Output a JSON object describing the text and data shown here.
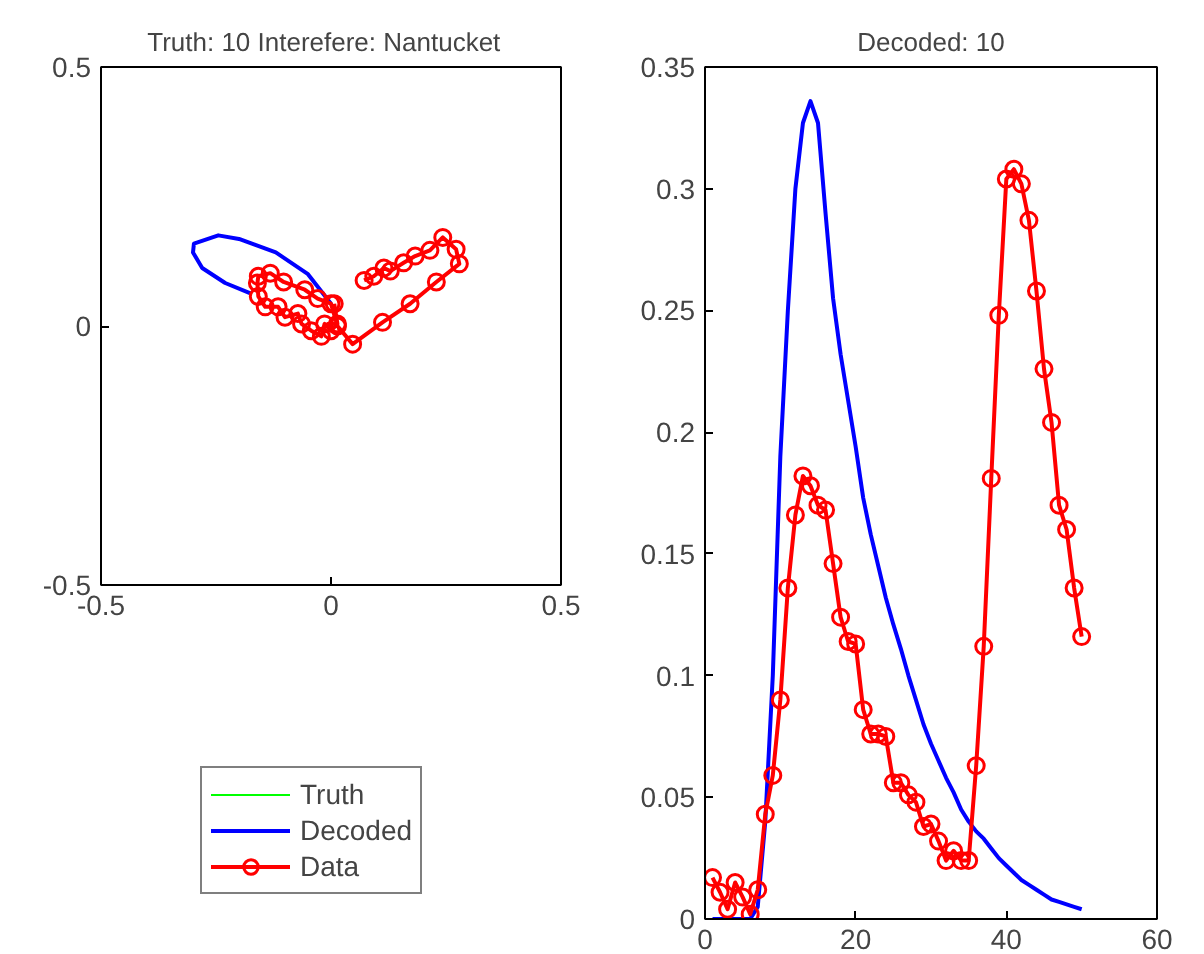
{
  "chart_data": [
    {
      "type": "line",
      "title": "Truth: 10   Interefere: Nantucket",
      "xlim": [
        -0.5,
        0.5
      ],
      "ylim": [
        -0.5,
        0.5
      ],
      "xticks": [
        -0.5,
        0,
        0.5
      ],
      "yticks": [
        -0.5,
        0,
        0.5
      ],
      "grid": false,
      "legend": "bottom",
      "series": [
        {
          "name": "Truth",
          "color": "#00ff00",
          "marker": "none"
        },
        {
          "name": "Decoded",
          "color": "#0000ff",
          "marker": "none",
          "x": [
            0,
            -0.05,
            -0.12,
            -0.2,
            -0.245,
            -0.298,
            -0.3,
            -0.28,
            -0.23,
            -0.175
          ],
          "values": [
            0.043,
            0.1,
            0.142,
            0.168,
            0.175,
            0.159,
            0.142,
            0.112,
            0.083,
            0.063
          ]
        },
        {
          "name": "Data",
          "color": "#ff0000",
          "marker": "circle",
          "x": [
            0.007,
            0.014,
            0,
            -0.014,
            -0.021,
            -0.043,
            -0.064,
            -0.072,
            -0.1,
            -0.115,
            -0.143,
            -0.158,
            -0.16,
            -0.158,
            -0.132,
            -0.103,
            -0.057,
            -0.029,
            0,
            0.014,
            0.047,
            0.112,
            0.172,
            0.229,
            0.279,
            0.272,
            0.243,
            0.215,
            0.183,
            0.158,
            0.129,
            0.115,
            0.093,
            0.072
          ],
          "values": [
            0.043,
            0.004,
            -0.009,
            0.004,
            -0.02,
            -0.009,
            0.004,
            0.024,
            0.017,
            0.037,
            0.037,
            0.057,
            0.083,
            0.096,
            0.102,
            0.085,
            0.07,
            0.053,
            0.043,
            0.0,
            -0.035,
            0.007,
            0.043,
            0.085,
            0.12,
            0.148,
            0.171,
            0.146,
            0.135,
            0.122,
            0.106,
            0.112,
            0.096,
            0.088
          ]
        }
      ]
    },
    {
      "type": "line",
      "title": "Decoded: 10",
      "xlim": [
        0,
        60
      ],
      "ylim": [
        0,
        0.35
      ],
      "xticks": [
        0,
        20,
        40,
        60
      ],
      "yticks": [
        0,
        0.05,
        0.1,
        0.15,
        0.2,
        0.25,
        0.3,
        0.35
      ],
      "grid": false,
      "x": [
        1,
        2,
        3,
        4,
        5,
        6,
        7,
        8,
        9,
        10,
        11,
        12,
        13,
        14,
        15,
        16,
        17,
        18,
        19,
        20,
        21,
        22,
        23,
        24,
        25,
        26,
        27,
        28,
        29,
        30,
        31,
        32,
        33,
        34,
        35,
        36,
        37,
        38,
        39,
        40,
        41,
        42,
        43,
        44,
        45,
        46,
        47,
        48,
        49,
        50
      ],
      "series": [
        {
          "color": "#0000ff",
          "marker": "none",
          "values": [
            0,
            0,
            0,
            0,
            0,
            0,
            0.005,
            0.04,
            0.1,
            0.19,
            0.25,
            0.3,
            0.327,
            0.336,
            0.327,
            0.29,
            0.255,
            0.232,
            0.213,
            0.194,
            0.173,
            0.158,
            0.145,
            0.132,
            0.121,
            0.111,
            0.1,
            0.09,
            0.08,
            0.072,
            0.065,
            0.058,
            0.052,
            0.045,
            0.04,
            0.036,
            0.033,
            0.029,
            0.025,
            0.022,
            0.019,
            0.016,
            0.014,
            0.012,
            0.01,
            0.008,
            0.007,
            0.006,
            0.005,
            0.004
          ]
        },
        {
          "color": "#ff0000",
          "marker": "circle",
          "values": [
            0.017,
            0.011,
            0.004,
            0.015,
            0.009,
            0.002,
            0.012,
            0.043,
            0.059,
            0.09,
            0.136,
            0.166,
            0.182,
            0.178,
            0.17,
            0.168,
            0.146,
            0.124,
            0.114,
            0.113,
            0.086,
            0.076,
            0.076,
            0.075,
            0.056,
            0.056,
            0.051,
            0.048,
            0.038,
            0.039,
            0.032,
            0.024,
            0.028,
            0.024,
            0.024,
            0.063,
            0.112,
            0.181,
            0.248,
            0.304,
            0.308,
            0.302,
            0.287,
            0.258,
            0.226,
            0.204,
            0.17,
            0.16,
            0.136,
            0.116
          ]
        }
      ]
    }
  ]
}
